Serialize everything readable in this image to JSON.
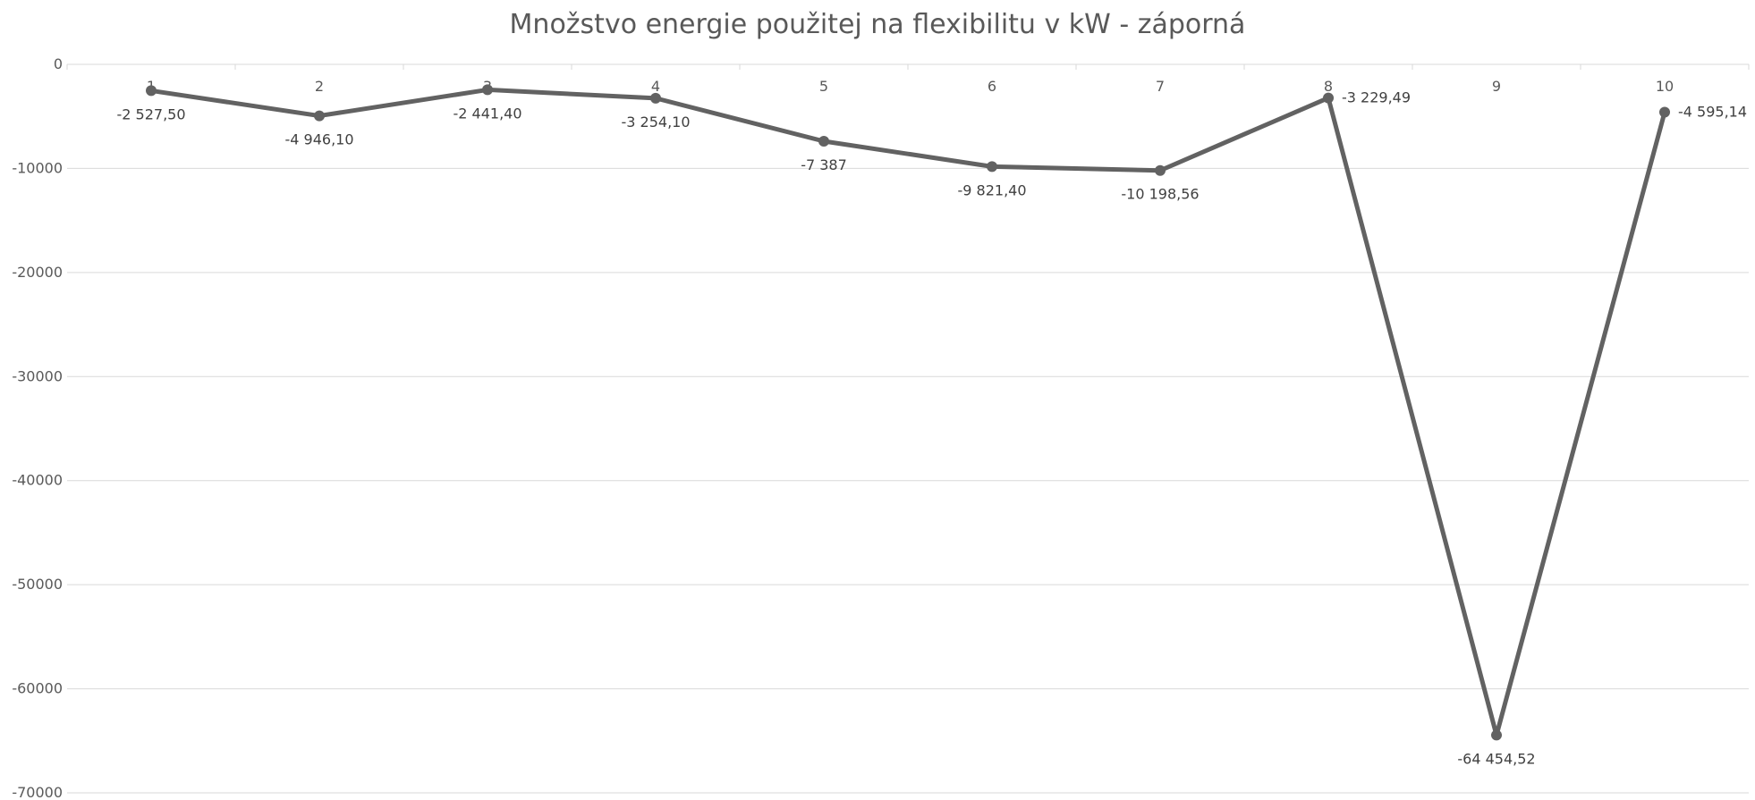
{
  "chart_data": {
    "type": "line",
    "title": "Množstvo energie použitej na flexibilitu v kW - záporná",
    "xlabel": "",
    "ylabel": "",
    "categories": [
      "1",
      "2",
      "3",
      "4",
      "5",
      "6",
      "7",
      "8",
      "9",
      "10"
    ],
    "series": [
      {
        "values": [
          -2527.5,
          -4946.1,
          -2441.4,
          -3254.1,
          -7387,
          -9821.4,
          -10198.56,
          -3229.49,
          -64454.52,
          -4595.14
        ],
        "labels": [
          "-2 527,50",
          "-4 946,10",
          "-2 441,40",
          "-3 254,10",
          "-7 387",
          "-9 821,40",
          "-10 198,56",
          "-3 229,49",
          "-64 454,52",
          "-4 595,14"
        ]
      }
    ],
    "ylim": [
      -70000,
      0
    ],
    "yticks": [
      0,
      -10000,
      -20000,
      -30000,
      -40000,
      -50000,
      -60000,
      -70000
    ],
    "ytick_labels": [
      "0",
      "-10000",
      "-20000",
      "-30000",
      "-40000",
      "-50000",
      "-60000",
      "-70000"
    ],
    "x_axis_position": "top",
    "grid": true,
    "legend": "none",
    "colors": {
      "line": "#626262",
      "grid": "#d9d9d9",
      "text": "#595959"
    }
  }
}
